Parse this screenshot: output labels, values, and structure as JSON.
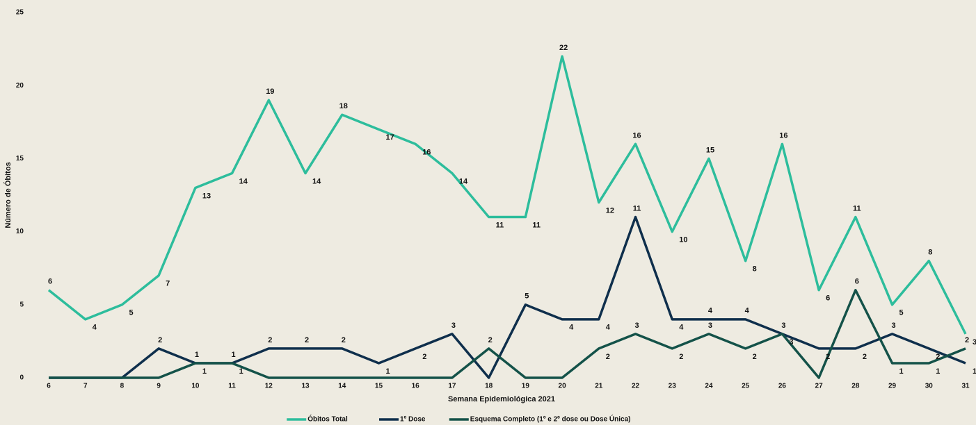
{
  "chart_data": {
    "type": "line",
    "xlabel": "Semana Epidemiológica 2021",
    "ylabel": "Número de Óbitos",
    "x": [
      6,
      7,
      8,
      9,
      10,
      11,
      12,
      13,
      14,
      15,
      16,
      17,
      18,
      19,
      20,
      21,
      22,
      23,
      24,
      25,
      26,
      27,
      28,
      29,
      30,
      31
    ],
    "xlim": [
      6,
      31
    ],
    "xticks": [
      6,
      7,
      8,
      9,
      10,
      11,
      12,
      13,
      14,
      15,
      16,
      17,
      18,
      19,
      20,
      21,
      22,
      23,
      24,
      25,
      26,
      27,
      28,
      29,
      30,
      31
    ],
    "ylim": [
      0,
      25
    ],
    "yticks": [
      0,
      5,
      10,
      15,
      20,
      25
    ],
    "grid": false,
    "legend": "bottom",
    "series": [
      {
        "name": "Óbitos Total",
        "color": "#2dbd9c",
        "values": [
          6,
          4,
          5,
          7,
          13,
          14,
          19,
          14,
          18,
          17,
          16,
          14,
          11,
          11,
          22,
          12,
          16,
          10,
          15,
          8,
          16,
          6,
          11,
          5,
          8,
          3
        ]
      },
      {
        "name": "1º Dose",
        "color": "#0f2f4c",
        "values": [
          0,
          0,
          0,
          2,
          1,
          1,
          2,
          2,
          2,
          1,
          2,
          3,
          0,
          5,
          4,
          4,
          11,
          4,
          4,
          4,
          3,
          2,
          2,
          3,
          2,
          1
        ]
      },
      {
        "name": "Esquema Completo (1º e 2º dose ou Dose Única)",
        "color": "#145249",
        "values": [
          0,
          0,
          0,
          0,
          1,
          1,
          0,
          0,
          0,
          0,
          0,
          0,
          2,
          0,
          0,
          2,
          3,
          2,
          3,
          2,
          3,
          0,
          6,
          1,
          1,
          2
        ]
      }
    ]
  }
}
